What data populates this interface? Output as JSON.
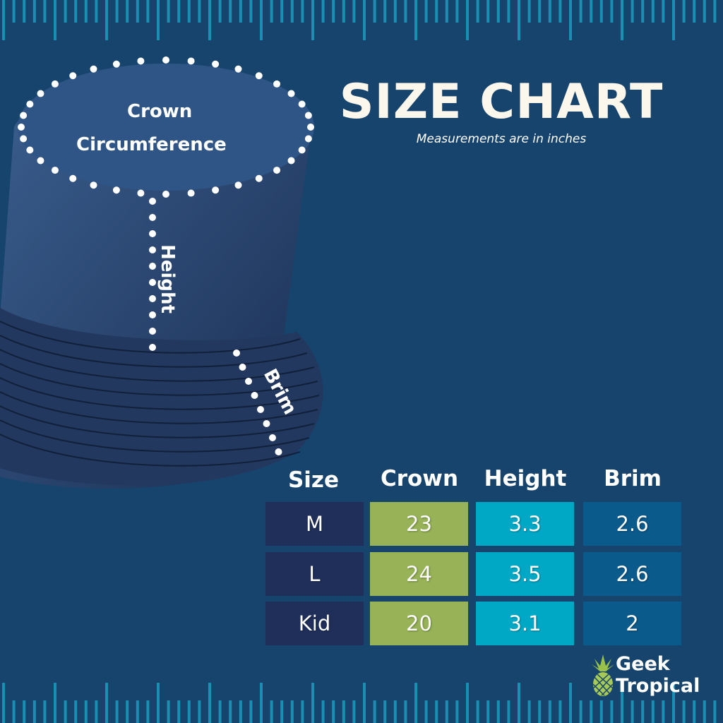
{
  "header": {
    "title": "SIZE CHART",
    "subtitle": "Measurements are in inches"
  },
  "diagram_labels": {
    "crown_line1": "Crown",
    "crown_line2": "Circumference",
    "height": "Height",
    "brim": "Brim"
  },
  "table": {
    "columns": [
      "Size",
      "Crown",
      "Height",
      "Brim"
    ],
    "rows": [
      [
        "M",
        "23",
        "3.3",
        "2.6"
      ],
      [
        "L",
        "24",
        "3.5",
        "2.6"
      ],
      [
        "Kid",
        "20",
        "3.1",
        "2"
      ]
    ]
  },
  "brand": {
    "line1": "Geek",
    "line2": "Tropical"
  },
  "colors": {
    "background": "#17446d",
    "size_cell": "#1f2f5a",
    "crown_cell": "#97b257",
    "height_cell": "#00a8c6",
    "brim_cell": "#0b5a8c",
    "ruler": "#1a8fb3"
  }
}
